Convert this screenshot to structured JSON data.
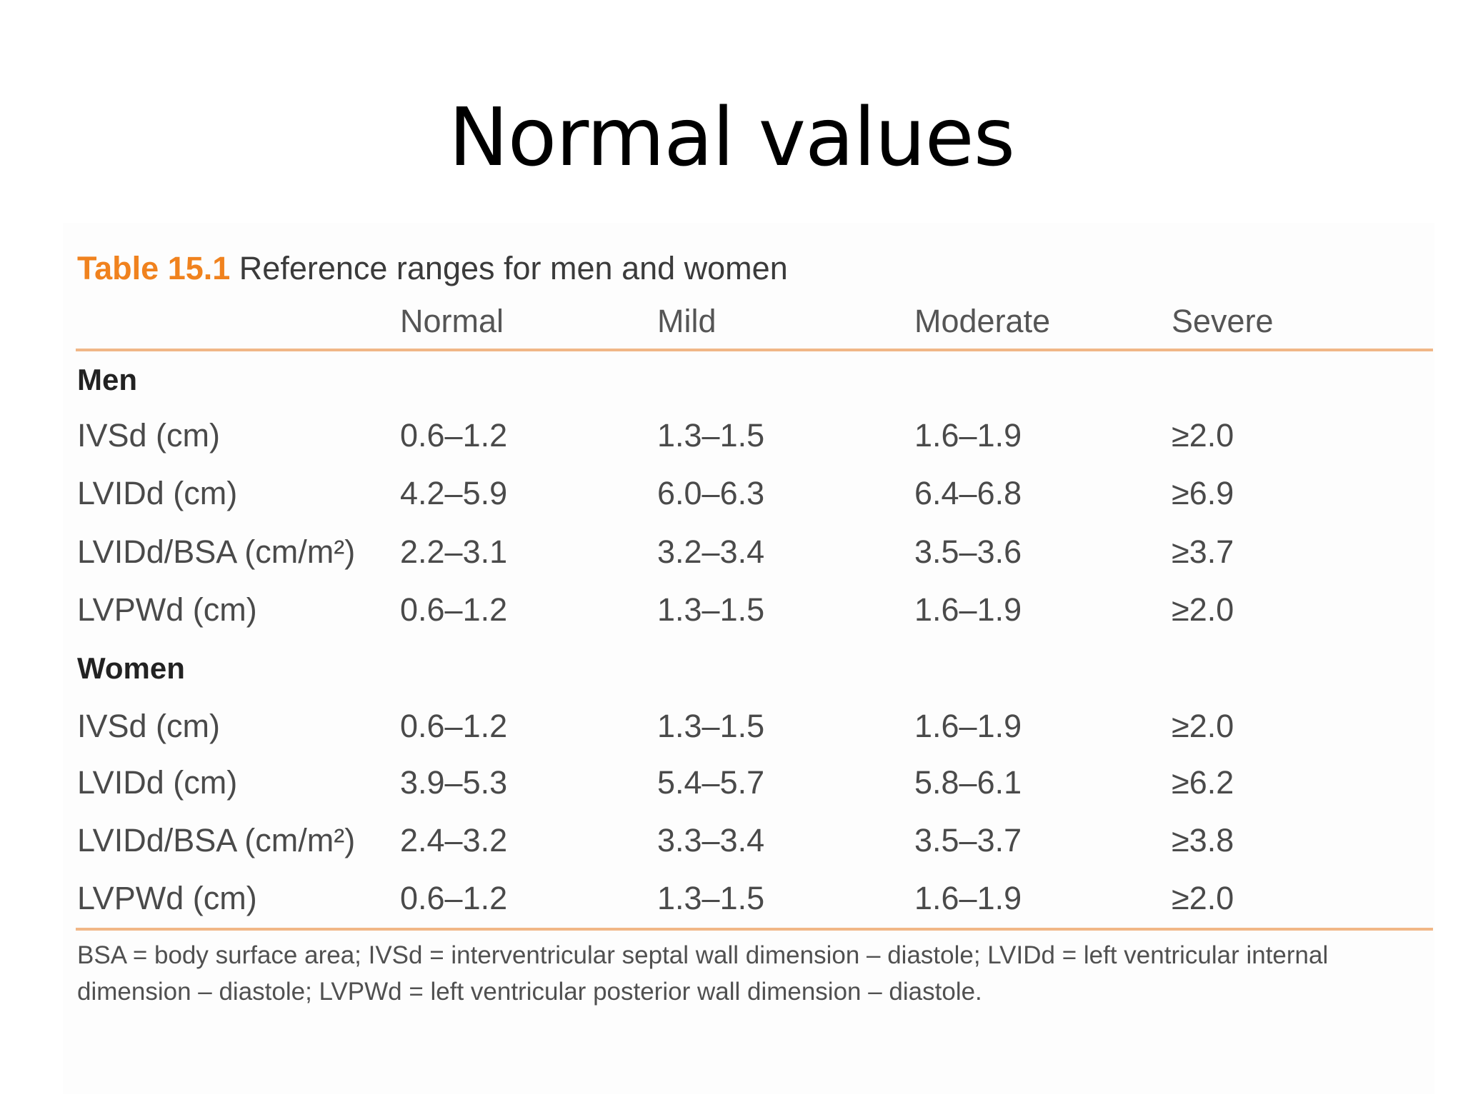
{
  "slide": {
    "title": "Normal values"
  },
  "table": {
    "caption_label": "Table 15.1",
    "caption_text": "Reference ranges for men and women",
    "columns": [
      "",
      "Normal",
      "Mild",
      "Moderate",
      "Severe"
    ],
    "sections": [
      {
        "label": "Men",
        "rows": [
          {
            "parameter": "IVSd (cm)",
            "normal": "0.6–1.2",
            "mild": "1.3–1.5",
            "moderate": "1.6–1.9",
            "severe": "≥2.0"
          },
          {
            "parameter": "LVIDd (cm)",
            "normal": "4.2–5.9",
            "mild": "6.0–6.3",
            "moderate": "6.4–6.8",
            "severe": "≥6.9"
          },
          {
            "parameter": "LVIDd/BSA (cm/m²)",
            "normal": "2.2–3.1",
            "mild": "3.2–3.4",
            "moderate": "3.5–3.6",
            "severe": "≥3.7"
          },
          {
            "parameter": "LVPWd (cm)",
            "normal": "0.6–1.2",
            "mild": "1.3–1.5",
            "moderate": "1.6–1.9",
            "severe": "≥2.0"
          }
        ]
      },
      {
        "label": "Women",
        "rows": [
          {
            "parameter": "IVSd (cm)",
            "normal": "0.6–1.2",
            "mild": "1.3–1.5",
            "moderate": "1.6–1.9",
            "severe": "≥2.0"
          },
          {
            "parameter": "LVIDd (cm)",
            "normal": "3.9–5.3",
            "mild": "5.4–5.7",
            "moderate": "5.8–6.1",
            "severe": "≥6.2"
          },
          {
            "parameter": "LVIDd/BSA (cm/m²)",
            "normal": "2.4–3.2",
            "mild": "3.3–3.4",
            "moderate": "3.5–3.7",
            "severe": "≥3.8"
          },
          {
            "parameter": "LVPWd (cm)",
            "normal": "0.6–1.2",
            "mild": "1.3–1.5",
            "moderate": "1.6–1.9",
            "severe": "≥2.0"
          }
        ]
      }
    ],
    "footnote": "BSA = body surface area; IVSd = interventricular septal wall dimension – diastole; LVIDd = left ventricular internal dimension – diastole; LVPWd = left ventricular posterior wall dimension – diastole.",
    "accent_color": "#f0821e",
    "rule_color": "#f1b787"
  }
}
